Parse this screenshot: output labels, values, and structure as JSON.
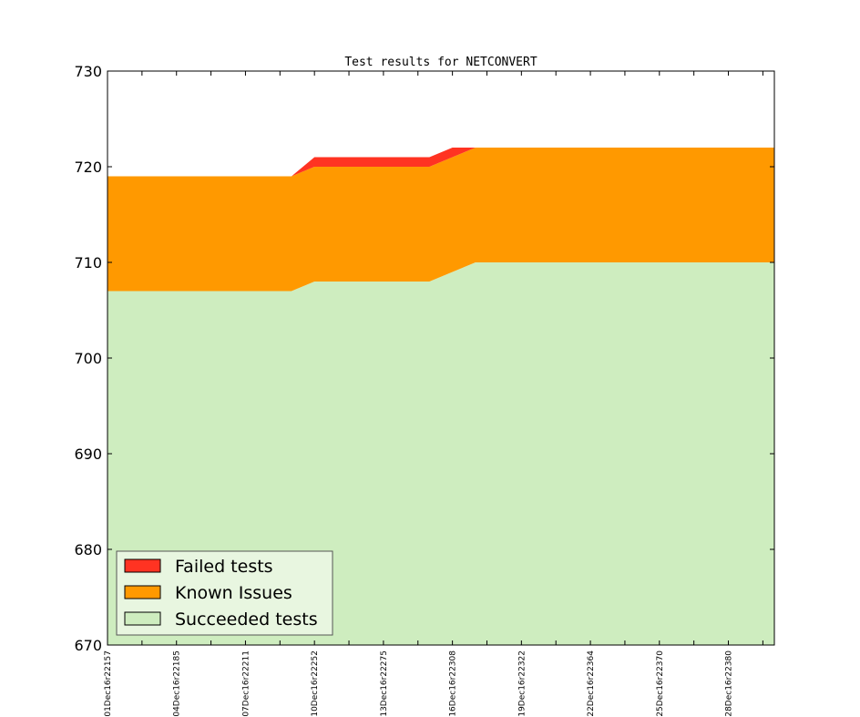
{
  "chart_data": {
    "type": "area",
    "title": "Test results for NETCONVERT",
    "xlabel": "",
    "ylabel": "",
    "ylim": [
      670,
      730
    ],
    "yticks": [
      670,
      680,
      690,
      700,
      710,
      720,
      730
    ],
    "x_index_range": [
      0,
      29
    ],
    "categories": [
      "01Dec16r22157",
      "04Dec16r22185",
      "07Dec16r22211",
      "10Dec16r22252",
      "13Dec16r22275",
      "16Dec16r22308",
      "19Dec16r22322",
      "22Dec16r22364",
      "25Dec16r22370",
      "28Dec16r22380"
    ],
    "tick_positions": [
      0,
      3,
      6,
      9,
      12,
      15,
      18,
      21,
      24,
      27
    ],
    "x": [
      0,
      8,
      9,
      14,
      15,
      16,
      29
    ],
    "series": [
      {
        "name": "Succeeded tests",
        "color": "#ceedbf",
        "values": [
          707,
          707,
          708,
          708,
          709,
          710,
          710
        ]
      },
      {
        "name": "Known Issues",
        "color": "#ff9900",
        "values": [
          12,
          12,
          12,
          12,
          12,
          12,
          12
        ]
      },
      {
        "name": "Failed tests",
        "color": "#ff3322",
        "values": [
          0,
          0,
          1,
          1,
          1,
          0,
          0
        ]
      }
    ],
    "legend": {
      "placement": "lower-left",
      "entries": [
        "Failed tests",
        "Known Issues",
        "Succeeded tests"
      ],
      "colors": [
        "#ff3322",
        "#ff9900",
        "#ceedbf"
      ]
    },
    "grid": false
  }
}
